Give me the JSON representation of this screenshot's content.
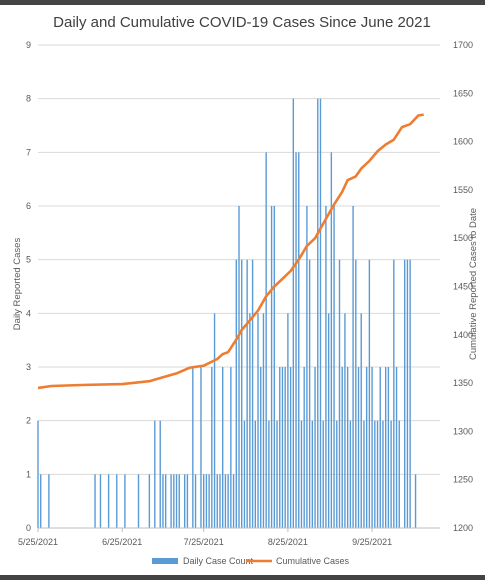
{
  "chart_data": {
    "type": "bar+line",
    "title": "Daily and Cumulative COVID-19 Cases Since June 2021",
    "x_ticks": [
      "5/25/2021",
      "6/25/2021",
      "7/25/2021",
      "8/25/2021",
      "9/25/2021"
    ],
    "x_range": [
      "2021-05-25",
      "2021-10-20"
    ],
    "y_left": {
      "label": "Daily Reported Cases",
      "range": [
        0,
        9
      ],
      "ticks": [
        0,
        1,
        2,
        3,
        4,
        5,
        6,
        7,
        8,
        9
      ]
    },
    "y_right": {
      "label": "Cumulative Reported Cases to Date",
      "range": [
        1200,
        1700
      ],
      "ticks": [
        1200,
        1250,
        1300,
        1350,
        1400,
        1450,
        1500,
        1550,
        1600,
        1650,
        1700
      ]
    },
    "gridlines": true,
    "legend_position": "bottom",
    "series": [
      {
        "name": "Daily Case Count",
        "kind": "bar",
        "color": "#5b9bd5",
        "points": [
          [
            "2021-05-25",
            2
          ],
          [
            "2021-05-26",
            1
          ],
          [
            "2021-05-29",
            1
          ],
          [
            "2021-06-15",
            1
          ],
          [
            "2021-06-17",
            1
          ],
          [
            "2021-06-20",
            1
          ],
          [
            "2021-06-23",
            1
          ],
          [
            "2021-06-26",
            1
          ],
          [
            "2021-07-01",
            1
          ],
          [
            "2021-07-05",
            1
          ],
          [
            "2021-07-07",
            2
          ],
          [
            "2021-07-09",
            2
          ],
          [
            "2021-07-10",
            1
          ],
          [
            "2021-07-11",
            1
          ],
          [
            "2021-07-13",
            1
          ],
          [
            "2021-07-14",
            1
          ],
          [
            "2021-07-15",
            1
          ],
          [
            "2021-07-16",
            1
          ],
          [
            "2021-07-18",
            1
          ],
          [
            "2021-07-19",
            1
          ],
          [
            "2021-07-21",
            3
          ],
          [
            "2021-07-22",
            1
          ],
          [
            "2021-07-24",
            3
          ],
          [
            "2021-07-25",
            1
          ],
          [
            "2021-07-26",
            1
          ],
          [
            "2021-07-27",
            1
          ],
          [
            "2021-07-28",
            3
          ],
          [
            "2021-07-29",
            4
          ],
          [
            "2021-07-30",
            1
          ],
          [
            "2021-07-31",
            1
          ],
          [
            "2021-08-01",
            3
          ],
          [
            "2021-08-02",
            1
          ],
          [
            "2021-08-03",
            1
          ],
          [
            "2021-08-04",
            3
          ],
          [
            "2021-08-05",
            1
          ],
          [
            "2021-08-06",
            5
          ],
          [
            "2021-08-07",
            6
          ],
          [
            "2021-08-08",
            5
          ],
          [
            "2021-08-09",
            2
          ],
          [
            "2021-08-10",
            5
          ],
          [
            "2021-08-11",
            4
          ],
          [
            "2021-08-12",
            5
          ],
          [
            "2021-08-13",
            2
          ],
          [
            "2021-08-14",
            4
          ],
          [
            "2021-08-15",
            3
          ],
          [
            "2021-08-16",
            4
          ],
          [
            "2021-08-17",
            7
          ],
          [
            "2021-08-18",
            2
          ],
          [
            "2021-08-19",
            6
          ],
          [
            "2021-08-20",
            6
          ],
          [
            "2021-08-21",
            2
          ],
          [
            "2021-08-22",
            3
          ],
          [
            "2021-08-23",
            3
          ],
          [
            "2021-08-24",
            3
          ],
          [
            "2021-08-25",
            4
          ],
          [
            "2021-08-26",
            3
          ],
          [
            "2021-08-27",
            8
          ],
          [
            "2021-08-28",
            7
          ],
          [
            "2021-08-29",
            7
          ],
          [
            "2021-08-30",
            2
          ],
          [
            "2021-08-31",
            3
          ],
          [
            "2021-09-01",
            6
          ],
          [
            "2021-09-02",
            5
          ],
          [
            "2021-09-03",
            2
          ],
          [
            "2021-09-04",
            3
          ],
          [
            "2021-09-05",
            8
          ],
          [
            "2021-09-06",
            8
          ],
          [
            "2021-09-07",
            2
          ],
          [
            "2021-09-08",
            6
          ],
          [
            "2021-09-09",
            4
          ],
          [
            "2021-09-10",
            7
          ],
          [
            "2021-09-11",
            6
          ],
          [
            "2021-09-12",
            2
          ],
          [
            "2021-09-13",
            5
          ],
          [
            "2021-09-14",
            3
          ],
          [
            "2021-09-15",
            4
          ],
          [
            "2021-09-16",
            3
          ],
          [
            "2021-09-17",
            2
          ],
          [
            "2021-09-18",
            6
          ],
          [
            "2021-09-19",
            5
          ],
          [
            "2021-09-20",
            3
          ],
          [
            "2021-09-21",
            4
          ],
          [
            "2021-09-22",
            2
          ],
          [
            "2021-09-23",
            3
          ],
          [
            "2021-09-24",
            5
          ],
          [
            "2021-09-25",
            3
          ],
          [
            "2021-09-26",
            2
          ],
          [
            "2021-09-27",
            2
          ],
          [
            "2021-09-28",
            3
          ],
          [
            "2021-09-29",
            2
          ],
          [
            "2021-09-30",
            3
          ],
          [
            "2021-10-01",
            3
          ],
          [
            "2021-10-02",
            2
          ],
          [
            "2021-10-03",
            5
          ],
          [
            "2021-10-04",
            3
          ],
          [
            "2021-10-05",
            2
          ],
          [
            "2021-10-07",
            5
          ],
          [
            "2021-10-08",
            5
          ],
          [
            "2021-10-09",
            5
          ],
          [
            "2021-10-11",
            1
          ]
        ]
      },
      {
        "name": "Cumulative Cases",
        "kind": "line",
        "color": "#ed7d31",
        "points": [
          [
            "2021-05-25",
            1345
          ],
          [
            "2021-05-30",
            1347
          ],
          [
            "2021-06-10",
            1348
          ],
          [
            "2021-06-25",
            1349
          ],
          [
            "2021-07-05",
            1352
          ],
          [
            "2021-07-10",
            1356
          ],
          [
            "2021-07-15",
            1360
          ],
          [
            "2021-07-20",
            1366
          ],
          [
            "2021-07-25",
            1368
          ],
          [
            "2021-07-30",
            1375
          ],
          [
            "2021-08-01",
            1380
          ],
          [
            "2021-08-03",
            1382
          ],
          [
            "2021-08-06",
            1395
          ],
          [
            "2021-08-08",
            1405
          ],
          [
            "2021-08-11",
            1415
          ],
          [
            "2021-08-14",
            1425
          ],
          [
            "2021-08-17",
            1440
          ],
          [
            "2021-08-20",
            1450
          ],
          [
            "2021-08-23",
            1458
          ],
          [
            "2021-08-26",
            1466
          ],
          [
            "2021-08-29",
            1478
          ],
          [
            "2021-09-01",
            1492
          ],
          [
            "2021-09-04",
            1500
          ],
          [
            "2021-09-06",
            1510
          ],
          [
            "2021-09-09",
            1525
          ],
          [
            "2021-09-11",
            1535
          ],
          [
            "2021-09-14",
            1548
          ],
          [
            "2021-09-16",
            1560
          ],
          [
            "2021-09-19",
            1564
          ],
          [
            "2021-09-21",
            1572
          ],
          [
            "2021-09-24",
            1580
          ],
          [
            "2021-09-27",
            1590
          ],
          [
            "2021-09-30",
            1597
          ],
          [
            "2021-10-03",
            1602
          ],
          [
            "2021-10-06",
            1615
          ],
          [
            "2021-10-09",
            1618
          ],
          [
            "2021-10-12",
            1627
          ],
          [
            "2021-10-14",
            1628
          ]
        ]
      }
    ]
  }
}
